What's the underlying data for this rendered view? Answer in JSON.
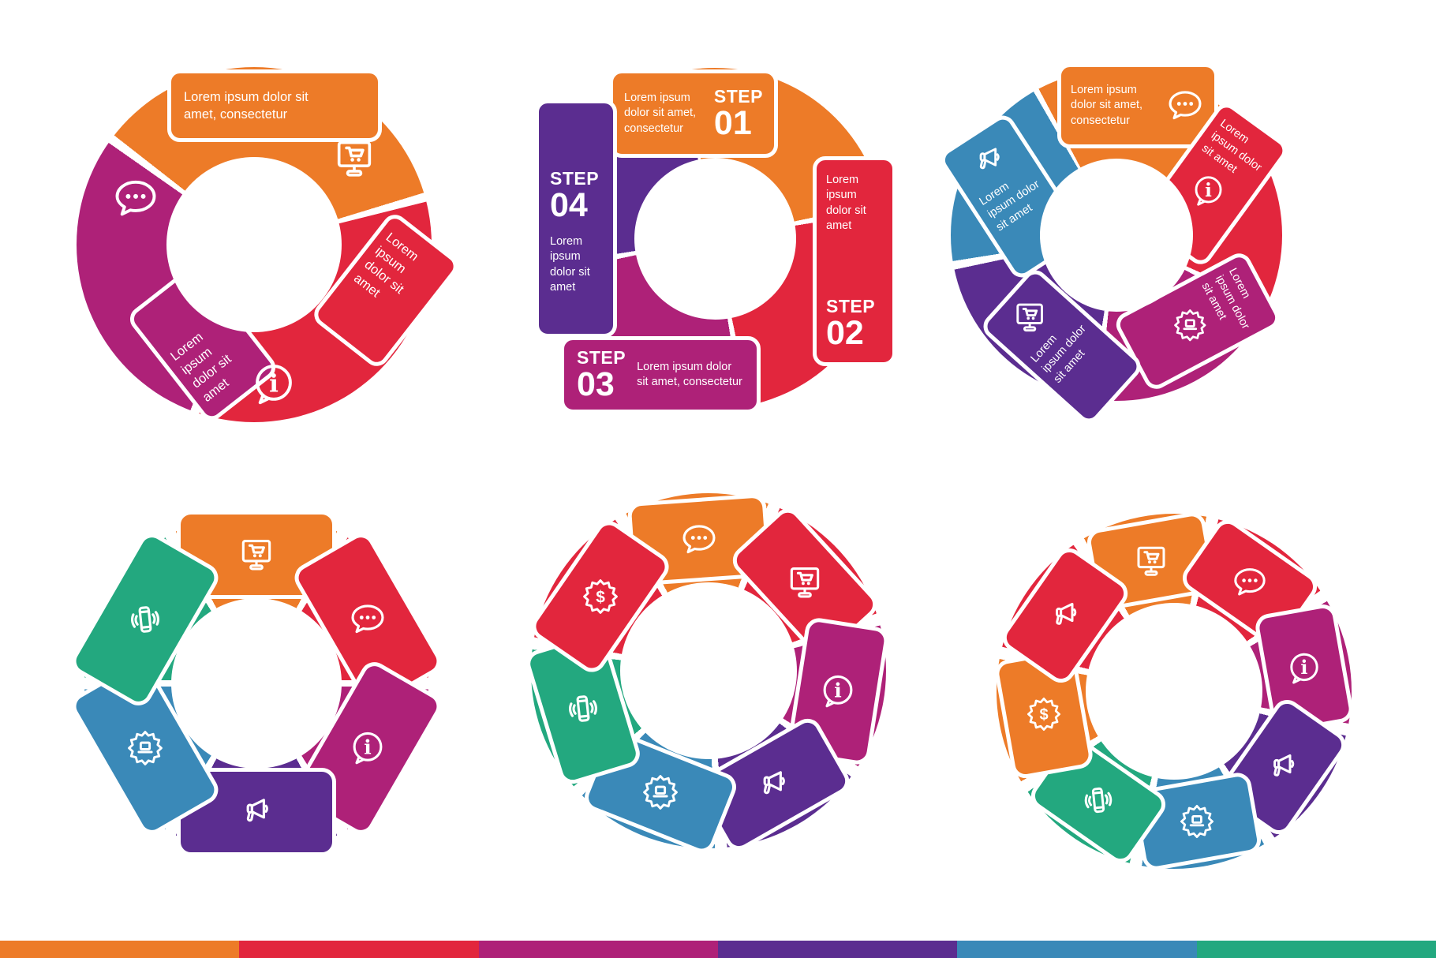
{
  "palette": {
    "orange": "#ED7B28",
    "red": "#E2263D",
    "magenta": "#AE2178",
    "purple": "#5B2D90",
    "blue": "#3A89B8",
    "teal": "#23A87F"
  },
  "texts": {
    "long": "Lorem ipsum dolor sit amet, consectetur",
    "short": "Lorem ipsum dolor sit amet"
  },
  "footer": {
    "swatches": [
      "orange",
      "red",
      "magenta",
      "purple",
      "blue",
      "teal"
    ]
  },
  "diagrams": [
    {
      "id": "cycle-3",
      "segments": [
        {
          "color": "orange",
          "icon": "cart-monitor-icon",
          "text": "Lorem ipsum dolor sit amet, consectetur"
        },
        {
          "color": "red",
          "icon": "info-bubble-icon",
          "text": "Lorem ipsum dolor sit amet"
        },
        {
          "color": "magenta",
          "icon": "chat-bubble-icon",
          "text": "Lorem ipsum dolor sit amet"
        }
      ]
    },
    {
      "id": "cycle-4-steps",
      "segments": [
        {
          "color": "orange",
          "step": "STEP",
          "number": "01",
          "text": "Lorem ipsum dolor sit amet, consectetur"
        },
        {
          "color": "red",
          "step": "STEP",
          "number": "02",
          "text": "Lorem ipsum dolor sit amet"
        },
        {
          "color": "magenta",
          "step": "STEP",
          "number": "03",
          "text": "Lorem ipsum dolor sit amet, consectetur"
        },
        {
          "color": "purple",
          "step": "STEP",
          "number": "04",
          "text": "Lorem ipsum dolor sit amet"
        }
      ]
    },
    {
      "id": "cycle-5",
      "segments": [
        {
          "color": "orange",
          "icon": "chat-bubble-icon",
          "text": "Lorem ipsum dolor sit amet, consectetur"
        },
        {
          "color": "red",
          "icon": "info-bubble-icon",
          "text": "Lorem ipsum dolor sit amet"
        },
        {
          "color": "magenta",
          "icon": "badge-laptop-icon",
          "text": "Lorem ipsum dolor sit amet"
        },
        {
          "color": "purple",
          "icon": "cart-monitor-icon",
          "text": "Lorem ipsum dolor sit amet"
        },
        {
          "color": "blue",
          "icon": "megaphone-icon",
          "text": "Lorem ipsum dolor sit amet"
        }
      ]
    },
    {
      "id": "cycle-6",
      "segments": [
        {
          "color": "orange",
          "icon": "cart-monitor-icon"
        },
        {
          "color": "red",
          "icon": "chat-bubble-icon"
        },
        {
          "color": "magenta",
          "icon": "info-bubble-icon"
        },
        {
          "color": "purple",
          "icon": "megaphone-icon"
        },
        {
          "color": "blue",
          "icon": "badge-laptop-icon"
        },
        {
          "color": "teal",
          "icon": "phone-vibrate-icon"
        }
      ]
    },
    {
      "id": "cycle-7",
      "segments": [
        {
          "color": "orange",
          "icon": "chat-bubble-icon"
        },
        {
          "color": "red",
          "icon": "cart-monitor-icon"
        },
        {
          "color": "magenta",
          "icon": "info-bubble-icon"
        },
        {
          "color": "purple",
          "icon": "megaphone-icon"
        },
        {
          "color": "blue",
          "icon": "badge-laptop-icon"
        },
        {
          "color": "teal",
          "icon": "phone-vibrate-icon"
        },
        {
          "color": "red",
          "icon": "dollar-badge-icon"
        }
      ]
    },
    {
      "id": "cycle-8",
      "segments": [
        {
          "color": "orange",
          "icon": "cart-monitor-icon"
        },
        {
          "color": "red",
          "icon": "chat-bubble-icon"
        },
        {
          "color": "magenta",
          "icon": "info-bubble-icon"
        },
        {
          "color": "purple",
          "icon": "megaphone-icon"
        },
        {
          "color": "blue",
          "icon": "badge-laptop-icon"
        },
        {
          "color": "teal",
          "icon": "phone-vibrate-icon"
        },
        {
          "color": "orange",
          "icon": "dollar-badge-icon"
        },
        {
          "color": "red",
          "icon": "megaphone-icon"
        }
      ]
    }
  ]
}
